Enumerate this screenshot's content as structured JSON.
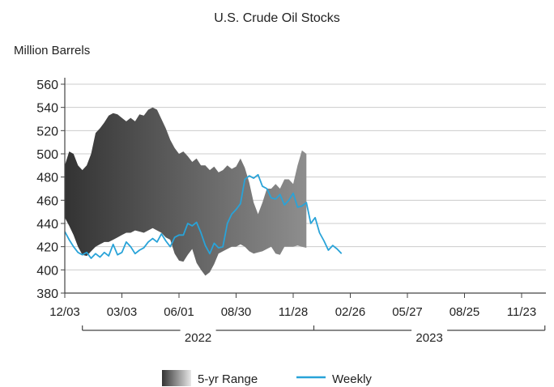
{
  "chart_data": {
    "type": "area",
    "title": "U.S. Crude Oil Stocks",
    "ylabel": "Million Barrels",
    "ylim": [
      380,
      560
    ],
    "yticks": [
      380,
      400,
      420,
      440,
      460,
      480,
      500,
      520,
      540,
      560
    ],
    "grid": true,
    "x_range_weeks": [
      0,
      55.5
    ],
    "xticks": [
      {
        "label": "12/03",
        "week": 0
      },
      {
        "label": "03/03",
        "week": 13
      },
      {
        "label": "06/01",
        "week": 26
      },
      {
        "label": "08/30",
        "week": 39
      },
      {
        "label": "11/28",
        "week": 52
      },
      {
        "label": "02/26",
        "week": 65
      },
      {
        "label": "05/27",
        "week": 78
      },
      {
        "label": "08/25",
        "week": 91
      },
      {
        "label": "11/23",
        "week": 104
      }
    ],
    "year_groups": [
      {
        "label": "2022",
        "from_week": 4,
        "to_week": 56.7
      },
      {
        "label": "2023",
        "from_week": 56.7,
        "to_week": 109.3
      }
    ],
    "legend_position": "bottom-center",
    "series": [
      {
        "name": "5-yr Range",
        "kind": "range",
        "color_dark": "#333333",
        "color_light": "#e8e8e8",
        "points": [
          [
            0,
            490,
            445
          ],
          [
            1,
            502,
            438
          ],
          [
            2,
            500,
            430
          ],
          [
            3,
            490,
            420
          ],
          [
            4,
            486,
            413
          ],
          [
            5,
            490,
            412
          ],
          [
            6,
            500,
            416
          ],
          [
            7,
            518,
            420
          ],
          [
            8,
            522,
            422
          ],
          [
            9,
            527,
            424
          ],
          [
            10,
            533,
            424
          ],
          [
            11,
            535,
            426
          ],
          [
            12,
            534,
            428
          ],
          [
            13,
            531,
            430
          ],
          [
            14,
            528,
            432
          ],
          [
            15,
            531,
            432
          ],
          [
            16,
            528,
            434
          ],
          [
            17,
            534,
            433
          ],
          [
            18,
            533,
            432
          ],
          [
            19,
            538,
            434
          ],
          [
            20,
            540,
            436
          ],
          [
            21,
            538,
            434
          ],
          [
            22,
            530,
            432
          ],
          [
            23,
            522,
            428
          ],
          [
            24,
            512,
            426
          ],
          [
            25,
            505,
            414
          ],
          [
            26,
            500,
            408
          ],
          [
            27,
            502,
            407
          ],
          [
            28,
            498,
            413
          ],
          [
            29,
            493,
            418
          ],
          [
            30,
            496,
            406
          ],
          [
            31,
            490,
            400
          ],
          [
            32,
            490,
            395
          ],
          [
            33,
            486,
            398
          ],
          [
            34,
            489,
            405
          ],
          [
            35,
            484,
            414
          ],
          [
            36,
            486,
            416
          ],
          [
            37,
            490,
            418
          ],
          [
            38,
            487,
            420
          ],
          [
            39,
            489,
            420
          ],
          [
            40,
            496,
            422
          ],
          [
            41,
            488,
            420
          ],
          [
            42,
            475,
            416
          ],
          [
            43,
            458,
            414
          ],
          [
            44,
            448,
            415
          ],
          [
            45,
            458,
            416
          ],
          [
            46,
            470,
            418
          ],
          [
            47,
            470,
            420
          ],
          [
            48,
            474,
            414
          ],
          [
            49,
            470,
            413
          ],
          [
            50,
            478,
            420
          ],
          [
            51,
            478,
            420
          ],
          [
            52,
            474,
            420
          ],
          [
            53,
            490,
            421
          ],
          [
            54,
            503,
            420
          ],
          [
            55,
            500,
            419
          ]
        ]
      },
      {
        "name": "Weekly",
        "kind": "line",
        "color": "#29a3d8",
        "points": [
          [
            0,
            433
          ],
          [
            1,
            426
          ],
          [
            2,
            420
          ],
          [
            3,
            415
          ],
          [
            4,
            413
          ],
          [
            5,
            415
          ],
          [
            6,
            410
          ],
          [
            7,
            414
          ],
          [
            8,
            411
          ],
          [
            9,
            415
          ],
          [
            10,
            412
          ],
          [
            11,
            422
          ],
          [
            12,
            413
          ],
          [
            13,
            415
          ],
          [
            14,
            424
          ],
          [
            15,
            420
          ],
          [
            16,
            414
          ],
          [
            17,
            417
          ],
          [
            18,
            419
          ],
          [
            19,
            424
          ],
          [
            20,
            427
          ],
          [
            21,
            424
          ],
          [
            22,
            431
          ],
          [
            23,
            425
          ],
          [
            24,
            420
          ],
          [
            25,
            428
          ],
          [
            26,
            430
          ],
          [
            27,
            430
          ],
          [
            28,
            440
          ],
          [
            29,
            438
          ],
          [
            30,
            441
          ],
          [
            31,
            432
          ],
          [
            32,
            421
          ],
          [
            33,
            414
          ],
          [
            34,
            423
          ],
          [
            35,
            419
          ],
          [
            36,
            420
          ],
          [
            37,
            440
          ],
          [
            38,
            448
          ],
          [
            39,
            452
          ],
          [
            40,
            457
          ],
          [
            41,
            478
          ],
          [
            42,
            481
          ],
          [
            43,
            479
          ],
          [
            44,
            482
          ],
          [
            45,
            472
          ],
          [
            46,
            470
          ],
          [
            47,
            462
          ],
          [
            48,
            461
          ],
          [
            49,
            465
          ],
          [
            50,
            456
          ],
          [
            51,
            460
          ],
          [
            52,
            466
          ],
          [
            53,
            454
          ],
          [
            54,
            455
          ],
          [
            55,
            458
          ],
          [
            56,
            440
          ],
          [
            57,
            445
          ],
          [
            58,
            432
          ],
          [
            59,
            425
          ],
          [
            60,
            417
          ],
          [
            61,
            421
          ],
          [
            62,
            418
          ],
          [
            63,
            414
          ]
        ]
      }
    ]
  }
}
